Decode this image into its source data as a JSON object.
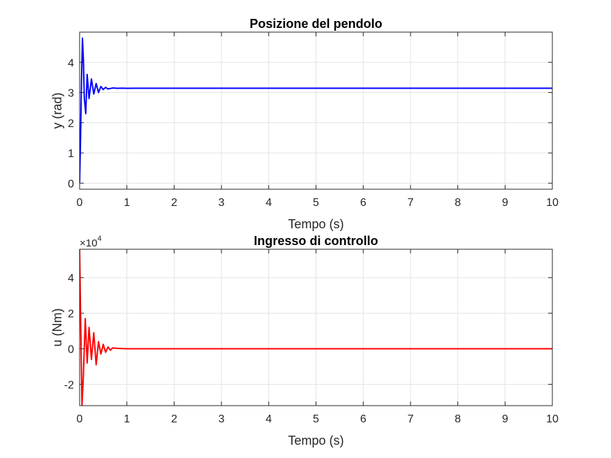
{
  "chart_data": [
    {
      "type": "line",
      "title": "Posizione del pendolo",
      "xlabel": "Tempo (s)",
      "ylabel": "y (rad)",
      "xlim": [
        0,
        10
      ],
      "ylim": [
        -0.2,
        5
      ],
      "xticks": [
        "0",
        "1",
        "2",
        "3",
        "4",
        "5",
        "6",
        "7",
        "8",
        "9",
        "10"
      ],
      "yticks": [
        "0",
        "1",
        "2",
        "3",
        "4"
      ],
      "grid": true,
      "exponent": "",
      "series": [
        {
          "color": "#0000ff",
          "x": [
            0,
            0.02,
            0.04,
            0.06,
            0.08,
            0.1,
            0.13,
            0.16,
            0.2,
            0.25,
            0.3,
            0.35,
            0.4,
            0.45,
            0.5,
            0.55,
            0.6,
            0.7,
            0.8,
            0.9,
            1.0,
            1.2,
            1.5,
            2,
            3,
            4,
            5,
            6,
            7,
            8,
            9,
            10
          ],
          "y": [
            0,
            1.5,
            3.4,
            4.8,
            4.1,
            2.8,
            2.3,
            3.6,
            2.8,
            3.45,
            2.95,
            3.3,
            3.0,
            3.2,
            3.1,
            3.17,
            3.12,
            3.15,
            3.14,
            3.145,
            3.14,
            3.142,
            3.142,
            3.142,
            3.142,
            3.142,
            3.142,
            3.142,
            3.142,
            3.142,
            3.142,
            3.142
          ]
        }
      ]
    },
    {
      "type": "line",
      "title": "Ingresso di controllo",
      "xlabel": "Tempo (s)",
      "ylabel": "u (Nm)",
      "xlim": [
        0,
        10
      ],
      "ylim": [
        -3.2,
        5.6
      ],
      "xticks": [
        "0",
        "1",
        "2",
        "3",
        "4",
        "5",
        "6",
        "7",
        "8",
        "9",
        "10"
      ],
      "yticks": [
        "-2",
        "0",
        "2",
        "4"
      ],
      "grid": true,
      "exponent": "×10",
      "exponent_power": "4",
      "series": [
        {
          "color": "#ff0000",
          "x": [
            0,
            0.02,
            0.05,
            0.08,
            0.12,
            0.16,
            0.2,
            0.25,
            0.3,
            0.35,
            0.4,
            0.45,
            0.5,
            0.55,
            0.6,
            0.65,
            0.7,
            0.8,
            0.9,
            1.0,
            1.2,
            1.5,
            2,
            3,
            4,
            5,
            6,
            7,
            8,
            9,
            10
          ],
          "y": [
            5.6,
            2.0,
            -3.2,
            -1.5,
            1.7,
            -0.8,
            1.2,
            -0.6,
            0.9,
            -0.9,
            0.4,
            -0.3,
            0.25,
            -0.2,
            0.1,
            -0.08,
            0.05,
            0.02,
            0.01,
            0,
            0,
            0,
            0,
            0,
            0,
            0,
            0,
            0,
            0,
            0,
            0
          ]
        }
      ]
    }
  ]
}
